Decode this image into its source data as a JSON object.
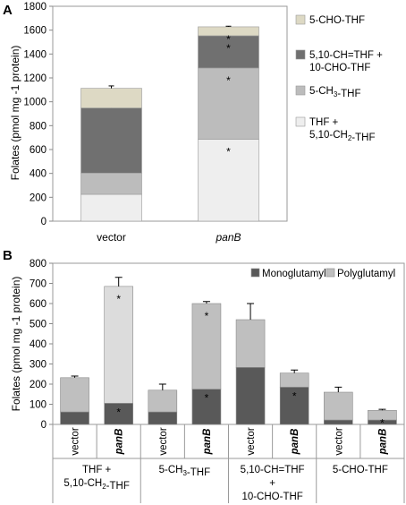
{
  "chart_data": [
    {
      "panel": "A",
      "type": "bar",
      "stacked": true,
      "ylabel": "Folates (pmol mg -1 protein)",
      "ylim": [
        0,
        1800
      ],
      "yticks": [
        0,
        200,
        400,
        600,
        800,
        1000,
        1200,
        1400,
        1600,
        1800
      ],
      "categories": [
        "vector",
        "panB"
      ],
      "category_italic": [
        false,
        true
      ],
      "series": [
        {
          "name_parts": [
            "THF +",
            "5,10-CH2-THF"
          ],
          "color": "#eeeeee",
          "values": [
            225,
            685
          ],
          "errors": [
            10,
            45
          ],
          "sig": [
            false,
            true
          ]
        },
        {
          "name_parts": [
            "5-CH3-THF"
          ],
          "color": "#bcbcbc",
          "values": [
            178,
            598
          ],
          "errors": [
            30,
            15
          ],
          "sig": [
            false,
            true
          ]
        },
        {
          "name_parts": [
            "5,10-CH=THF +",
            "10-CHO-THF"
          ],
          "color": "#707070",
          "values": [
            545,
            270
          ],
          "errors": [
            85,
            25
          ],
          "sig": [
            false,
            true
          ]
        },
        {
          "name_parts": [
            "5-CHO-THF"
          ],
          "color": "#ddd9c4",
          "values": [
            165,
            75
          ],
          "errors": [
            20,
            5
          ],
          "sig": [
            false,
            true
          ]
        }
      ],
      "legend_placement": "right",
      "grid": false
    },
    {
      "panel": "B",
      "type": "bar",
      "stacked": true,
      "ylabel": "Folates (pmol mg -1 protein)",
      "ylim": [
        0,
        800
      ],
      "yticks": [
        0,
        100,
        200,
        300,
        400,
        500,
        600,
        700,
        800
      ],
      "categories": [
        "vector",
        "panB",
        "vector",
        "panB",
        "vector",
        "panB",
        "vector",
        "panB"
      ],
      "category_italic": [
        false,
        true,
        false,
        true,
        false,
        true,
        false,
        true
      ],
      "groups": [
        {
          "label_parts": [
            "THF +",
            "5,10-CH2-THF"
          ]
        },
        {
          "label_parts": [
            "5-CH3-THF"
          ]
        },
        {
          "label_parts": [
            "5,10-CH=THF",
            "+",
            "10-CHO-THF"
          ]
        },
        {
          "label_parts": [
            "5-CHO-THF"
          ]
        }
      ],
      "series": [
        {
          "name": "Monoglutamyl",
          "color": "#595959",
          "values": [
            62,
            105,
            62,
            175,
            283,
            185,
            22,
            22
          ],
          "errors": [
            8,
            15,
            10,
            10,
            5,
            15,
            4,
            4
          ],
          "sig": [
            false,
            true,
            false,
            true,
            false,
            true,
            false,
            false
          ]
        },
        {
          "name": "Polyglutamyl",
          "color": "#bfbfbf",
          "values": [
            170,
            580,
            108,
            425,
            237,
            70,
            138,
            48
          ],
          "errors": [
            8,
            45,
            30,
            10,
            80,
            15,
            25,
            5
          ],
          "sig": [
            false,
            true,
            false,
            true,
            false,
            false,
            false,
            true
          ]
        }
      ],
      "highlight_bar": {
        "index": 1,
        "color": "#dcdcdc"
      },
      "legend_placement": "top-right",
      "grid": false
    }
  ],
  "panel_labels": {
    "a": "A",
    "b": "B"
  },
  "sig_mark": "*"
}
